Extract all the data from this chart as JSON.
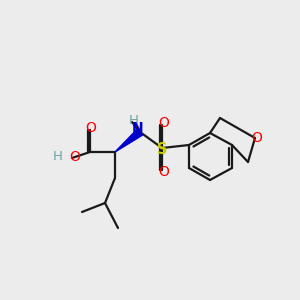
{
  "bg_color": "#ececec",
  "bond_color": "#1a1a1a",
  "colors": {
    "O": "#ff0000",
    "N": "#0000cc",
    "S": "#cccc00",
    "H_label": "#6fa3a3"
  },
  "font_size": 9.5,
  "lw": 1.6
}
